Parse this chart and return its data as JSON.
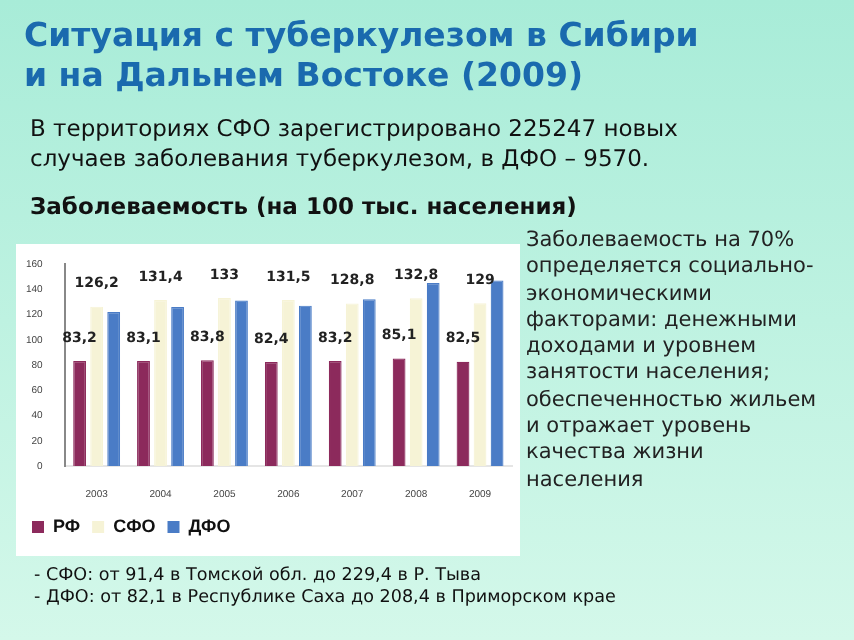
{
  "chart_data": {
    "type": "bar",
    "title": "Ситуация с туберкулезом в Сибири и на Дальнем Востоке (2009)",
    "subtitle": "В территориях СФО зарегистрировано 225247 новых случаев заболевания туберкулезом, в ДФО – 9570.",
    "annotations": [
      "Заболеваемость (на 100 тыс. населения)",
      "Заболеваемость на 70% определяется социально-экономическими факторами: денежными доходами и уровнем занятости населения; обеспеченностью жильем и отражает уровень качества жизни населения",
      "- СФО: от 91,4 в Томской обл. до 229,4 в Р. Тыва",
      "- ДФО: от 82,1 в Республике Саха до 208,4 в Приморском крае"
    ],
    "categories": [
      "2003",
      "2004",
      "2005",
      "2006",
      "2007",
      "2008",
      "2009"
    ],
    "series": [
      {
        "name": "РФ",
        "color": "#8c2a5c",
        "values": [
          83.2,
          83.1,
          83.8,
          82.4,
          83.2,
          85.1,
          82.5
        ],
        "value_labels": [
          "83,2",
          "83,1",
          "83,8",
          "82,4",
          "83,2",
          "85,1",
          "82,5"
        ]
      },
      {
        "name": "СФО",
        "color": "#f6f3d6",
        "values": [
          126.2,
          131.4,
          133,
          131.5,
          128.8,
          132.8,
          129
        ],
        "value_labels": [
          "126,2",
          "131,4",
          "133",
          "131,5",
          "128,8",
          "132,8",
          "129"
        ]
      },
      {
        "name": "ДФО",
        "color": "#4a7cc6",
        "values": [
          122,
          126,
          131,
          127,
          132,
          145,
          147
        ]
      }
    ],
    "ylim": [
      0,
      160
    ],
    "yticks": [
      0,
      20,
      40,
      60,
      80,
      100,
      120,
      140,
      160
    ],
    "grid": false,
    "legend": "bottom"
  }
}
